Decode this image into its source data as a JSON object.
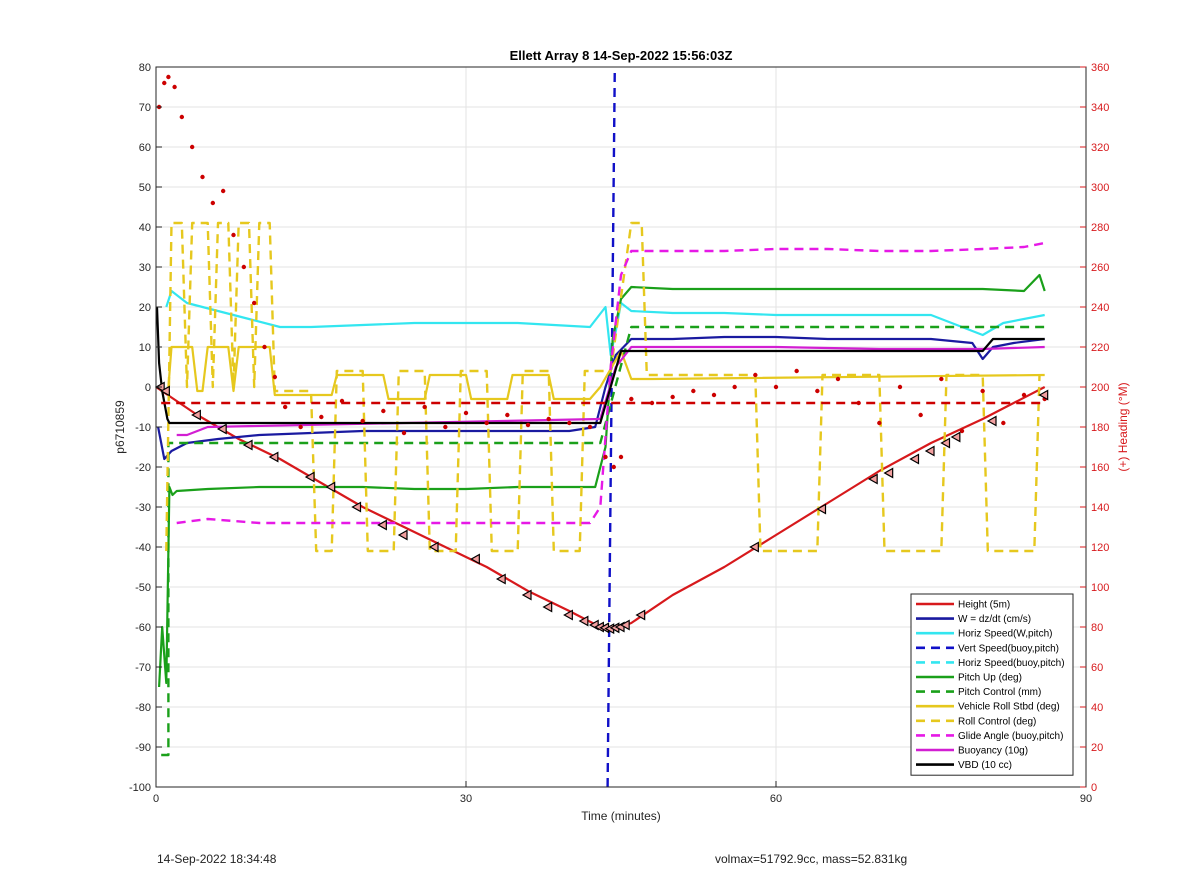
{
  "chart_data": {
    "type": "line",
    "title": "Ellett Array 8 14-Sep-2022 15:56:03Z",
    "xlabel": "Time (minutes)",
    "ylabel": "p6710859",
    "ylabel_right": "(+) Heading (°M)",
    "xlim": [
      0,
      90
    ],
    "ylim": [
      -100,
      80
    ],
    "ylim_right": [
      0,
      360
    ],
    "x_ticks": [
      0,
      30,
      60,
      90
    ],
    "y_ticks": [
      -100,
      -90,
      -80,
      -70,
      -60,
      -50,
      -40,
      -30,
      -20,
      -10,
      0,
      10,
      20,
      30,
      40,
      50,
      60,
      70,
      80
    ],
    "y_ticks_right": [
      0,
      20,
      40,
      60,
      80,
      100,
      120,
      140,
      160,
      180,
      200,
      220,
      240,
      260,
      280,
      300,
      320,
      340,
      360
    ],
    "grid": true,
    "legend_position": "bottom-right",
    "series": [
      {
        "name": "Height (5m)",
        "color": "#d7191c",
        "style": "solid",
        "x": [
          0,
          4,
          8,
          12,
          16,
          20,
          24,
          28,
          32,
          36,
          40,
          43,
          44.5,
          46,
          50,
          55,
          60,
          65,
          70,
          75,
          80,
          86
        ],
        "y": [
          0,
          -7,
          -13,
          -18,
          -24,
          -30,
          -35,
          -40,
          -45,
          -51,
          -56,
          -60,
          -60.5,
          -59,
          -52,
          -45,
          -37,
          -29,
          -21,
          -14,
          -8,
          0
        ]
      },
      {
        "name": "W = dz/dt (cm/s)",
        "color": "#1a1aa0",
        "style": "solid",
        "x": [
          0.2,
          0.8,
          1.5,
          3,
          6,
          10,
          15,
          20,
          25,
          30,
          35,
          40,
          42.5,
          43.5,
          44.5,
          46,
          50,
          55,
          60,
          65,
          70,
          75,
          79,
          80,
          81,
          83,
          86
        ],
        "y": [
          -10,
          -18,
          -16,
          -14,
          -13,
          -12,
          -11.5,
          -11,
          -11,
          -11,
          -11,
          -11,
          -10,
          0,
          8,
          12,
          12,
          12.5,
          12.5,
          12,
          12,
          12,
          11,
          7,
          10,
          11,
          12
        ]
      },
      {
        "name": "Horiz Speed(W,pitch)",
        "color": "#33e6f0",
        "style": "solid",
        "x": [
          1,
          1.5,
          3,
          6,
          9,
          12,
          15,
          20,
          25,
          30,
          35,
          42,
          43.5,
          44,
          44.5,
          45,
          46,
          50,
          55,
          60,
          65,
          70,
          75,
          78,
          80,
          82,
          86
        ],
        "y": [
          20,
          24,
          21,
          19,
          17,
          15,
          15,
          15.5,
          16,
          16,
          16,
          15,
          20,
          8,
          14,
          21,
          19,
          18.5,
          18.5,
          18,
          18,
          18,
          18,
          15,
          13,
          16,
          18
        ]
      },
      {
        "name": "Vert Speed(buoy,pitch)",
        "color": "#1010c8",
        "style": "dashed",
        "x": [
          43.7,
          44.4
        ],
        "y": [
          -100,
          80
        ]
      },
      {
        "name": "Horiz Speed(buoy,pitch)",
        "color": "#33e6f0",
        "style": "dashed",
        "x": [],
        "y": []
      },
      {
        "name": "Pitch Up (deg)",
        "color": "#1aa01a",
        "style": "solid",
        "x": [
          0.3,
          0.6,
          1,
          1.3,
          1.6,
          2,
          5,
          10,
          15,
          20,
          25,
          30,
          35,
          42.5,
          43.5,
          44.2,
          45,
          46,
          50,
          55,
          60,
          65,
          70,
          75,
          80,
          84,
          85.5,
          86
        ],
        "y": [
          -75,
          -60,
          -74,
          -25,
          -27,
          -26,
          -25.5,
          -25,
          -25,
          -25,
          -25.5,
          -25.5,
          -25,
          -25,
          -15,
          12,
          22,
          25,
          24.5,
          24.5,
          24.5,
          24.5,
          24.5,
          24.5,
          24.5,
          24,
          28,
          24
        ]
      },
      {
        "name": "Pitch Control (mm)",
        "color": "#1aa01a",
        "style": "dashed",
        "x": [
          0.5,
          1,
          1.2,
          1.2,
          43,
          43,
          46,
          86
        ],
        "y": [
          -92,
          -92,
          -92,
          -14,
          -14,
          -14,
          15,
          15
        ]
      },
      {
        "name": "Vehicle Roll Stbd (deg)",
        "color": "#e6c81e",
        "style": "solid",
        "x": [
          1.2,
          1.5,
          3.5,
          4,
          4.5,
          5,
          7,
          7.5,
          8,
          9.5,
          11,
          11.5,
          17,
          17.5,
          22,
          22.5,
          26,
          26.5,
          30,
          30.5,
          34,
          34.5,
          38,
          38.5,
          42,
          43,
          45,
          46,
          48,
          86
        ],
        "y": [
          0,
          10,
          10,
          -1,
          -1,
          10,
          10,
          -1,
          10,
          10,
          10,
          -2,
          -2,
          3,
          3,
          -3,
          -3,
          3,
          3,
          -3,
          -3,
          3,
          3,
          -3,
          -3,
          0,
          9,
          2,
          2,
          3
        ]
      },
      {
        "name": "Roll Control (deg)",
        "color": "#e6c81e",
        "style": "dashed",
        "x": [
          1,
          1.5,
          2.5,
          3,
          3.5,
          4,
          5,
          5.5,
          6,
          7,
          7.5,
          8,
          9,
          9.5,
          10,
          11,
          11.5,
          15,
          15.5,
          17,
          17.5,
          20,
          20.5,
          23,
          23.5,
          26,
          26.5,
          29,
          29.5,
          32,
          32.5,
          35,
          35.5,
          38,
          38.5,
          41,
          41.5,
          44,
          46,
          47,
          47.5,
          58,
          58.5,
          64,
          64.5,
          70,
          70.5,
          76,
          76.5,
          80,
          80.5,
          85,
          85.5
        ],
        "y": [
          -41,
          41,
          41,
          0,
          41,
          41,
          41,
          0,
          41,
          41,
          0,
          41,
          41,
          0,
          41,
          41,
          -1,
          -1,
          -41,
          -41,
          4,
          4,
          -41,
          -41,
          4,
          4,
          -41,
          -41,
          4,
          4,
          -41,
          -41,
          4,
          4,
          -41,
          -41,
          4,
          4,
          41,
          41,
          3,
          3,
          -41,
          -41,
          3,
          3,
          -41,
          -41,
          3,
          3,
          -41,
          -41,
          3
        ]
      },
      {
        "name": "Glide Angle (buoy,pitch)",
        "color": "#e619e6",
        "style": "dashed",
        "x": [
          2,
          5,
          10,
          15,
          20,
          25,
          30,
          35,
          42,
          43,
          44,
          45,
          46,
          50,
          55,
          60,
          65,
          70,
          75,
          80,
          84,
          86
        ],
        "y": [
          -34,
          -33,
          -34,
          -34,
          -34,
          -34,
          -34,
          -34,
          -34,
          -30,
          5,
          28,
          34,
          34,
          34,
          34.5,
          34.5,
          34,
          34,
          34.5,
          35,
          36
        ]
      },
      {
        "name": "Buoyancy (10g)",
        "color": "#d21ed2",
        "style": "solid",
        "x": [
          2,
          3,
          5,
          43,
          44.5,
          46,
          50,
          60,
          70,
          80,
          86
        ],
        "y": [
          -12,
          -12,
          -10,
          -8,
          5,
          10,
          10,
          10,
          9.5,
          9.5,
          10
        ]
      },
      {
        "name": "VBD (10 cc)",
        "color": "#000000",
        "style": "solid",
        "x": [
          0.1,
          0.3,
          0.6,
          1.1,
          1.3,
          43,
          45,
          47,
          80,
          81,
          86
        ],
        "y": [
          20,
          6,
          -1,
          -8,
          -9,
          -9,
          9,
          9,
          9,
          12,
          12
        ]
      },
      {
        "name": "",
        "color": "#cc0000",
        "style": "dotted",
        "axis": "right",
        "x": [
          0.3,
          0.8,
          1.2,
          1.8,
          2.5,
          3.5,
          4.5,
          5.5,
          6.5,
          7.5,
          8.5,
          9.5,
          10.5,
          11.5,
          12.5,
          14,
          16,
          18,
          20,
          22,
          24,
          26,
          28,
          30,
          32,
          34,
          36,
          38,
          40,
          42,
          43.5,
          44.3,
          45,
          46,
          48,
          50,
          52,
          54,
          56,
          58,
          60,
          62,
          64,
          66,
          68,
          70,
          72,
          74,
          76,
          78,
          80,
          82,
          84,
          86
        ],
        "y": [
          340,
          352,
          355,
          350,
          335,
          320,
          305,
          292,
          298,
          276,
          260,
          242,
          220,
          205,
          190,
          180,
          185,
          193,
          183,
          188,
          177,
          190,
          180,
          187,
          182,
          186,
          181,
          184,
          182,
          180,
          165,
          160,
          165,
          194,
          192,
          195,
          198,
          196,
          200,
          206,
          200,
          208,
          198,
          204,
          192,
          182,
          200,
          186,
          204,
          178,
          198,
          182,
          196,
          194
        ]
      },
      {
        "name": "",
        "color": "#cc0000",
        "style": "dashed",
        "axis": "right",
        "x": [
          0.5,
          43,
          45,
          86
        ],
        "y": [
          192,
          192,
          192,
          192
        ]
      }
    ],
    "markers": {
      "name": "Height (5m)",
      "x": [
        0.5,
        1,
        4,
        6.5,
        9,
        11.5,
        15,
        17,
        19.5,
        22,
        24,
        27,
        31,
        33.5,
        36,
        38,
        40,
        41.5,
        42.5,
        43,
        43.5,
        44,
        44.5,
        45,
        45.5,
        47,
        58,
        64.5,
        69.5,
        71,
        73.5,
        75,
        76.5,
        77.5,
        81,
        86
      ],
      "y": [
        0,
        -1,
        -7,
        -10.5,
        -14.5,
        -17.5,
        -22.5,
        -25,
        -30,
        -34.5,
        -37,
        -40,
        -43,
        -48,
        -52,
        -55,
        -57,
        -58.5,
        -59.5,
        -60,
        -60.2,
        -60.4,
        -60.2,
        -60,
        -59.5,
        -57,
        -40,
        -30.5,
        -23,
        -21.5,
        -18,
        -16,
        -14,
        -12.5,
        -8.5,
        -2
      ]
    }
  },
  "footer": {
    "left": "14-Sep-2022 18:34:48",
    "right": "volmax=51792.9cc, mass=52.831kg"
  }
}
